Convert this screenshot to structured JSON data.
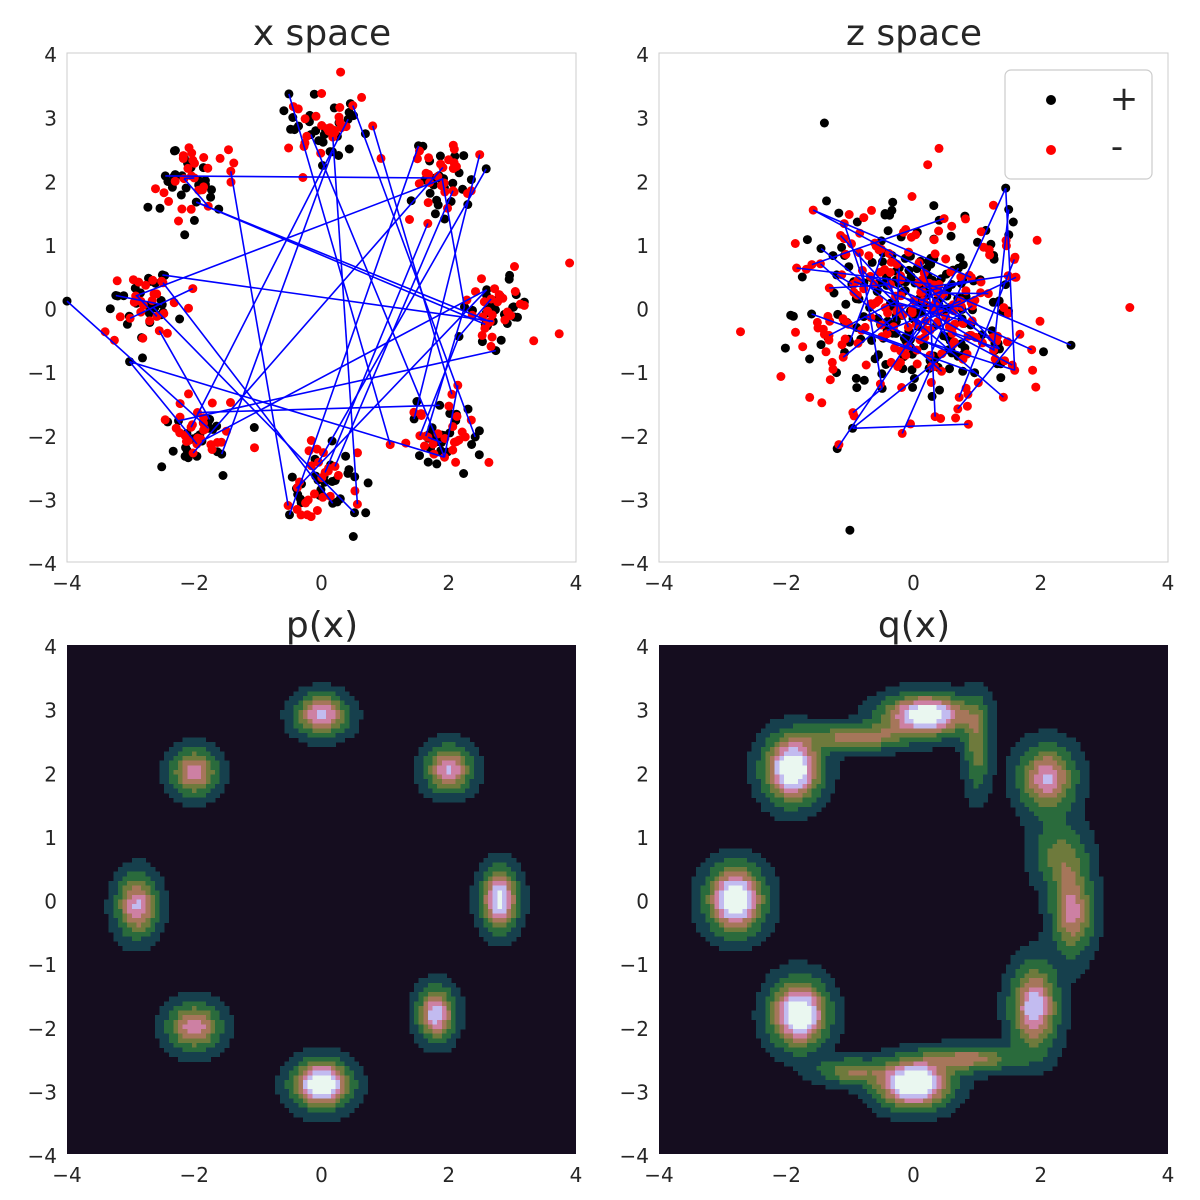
{
  "colors": {
    "positive": "#000000",
    "negative": "#ff0000",
    "link": "#0000ff",
    "spine": "#cccccc",
    "text": "#262626",
    "density_levels": [
      "#150d1f",
      "#16404d",
      "#2a6b3c",
      "#6e7a3c",
      "#a6765a",
      "#cd80a3",
      "#c2bbf0",
      "#eaf7f0"
    ]
  },
  "chart_data": [
    {
      "id": "x-space",
      "type": "scatter",
      "title": "x space",
      "xlim": [
        -4,
        4
      ],
      "ylim": [
        -4,
        4
      ],
      "xticks": [
        "−4",
        "−2",
        "0",
        "2",
        "4"
      ],
      "yticks": [
        "−4",
        "−3",
        "−2",
        "−1",
        "0",
        "1",
        "2",
        "3",
        "4"
      ],
      "grid": false,
      "mixture": {
        "modes": 8,
        "radius": 2.8,
        "spread": 0.3
      },
      "series": [
        {
          "label": "+",
          "points_per_mode": 28
        },
        {
          "label": "-",
          "points_per_mode": 28
        }
      ],
      "links": 40,
      "outliers": [
        [
          -4.0,
          0.1
        ],
        [
          3.9,
          0.7
        ],
        [
          0.5,
          -3.6
        ],
        [
          0.3,
          3.7
        ]
      ]
    },
    {
      "id": "z-space",
      "type": "scatter",
      "title": "z space",
      "xlim": [
        -4,
        4
      ],
      "ylim": [
        -4,
        4
      ],
      "xticks": [
        "−4",
        "−2",
        "0",
        "2",
        "4"
      ],
      "yticks": [
        "−4",
        "−3",
        "−2",
        "−1",
        "0",
        "1",
        "2",
        "3",
        "4"
      ],
      "grid": false,
      "distribution": {
        "mean": [
          0,
          0
        ],
        "std": 0.9
      },
      "series": [
        {
          "label": "+",
          "points": 220
        },
        {
          "label": "-",
          "points": 220
        }
      ],
      "links": 55,
      "outliers": [
        [
          -1.0,
          -3.5
        ],
        [
          3.4,
          0.0
        ],
        [
          -1.4,
          2.9
        ],
        [
          0.4,
          2.5
        ]
      ],
      "legend": {
        "position": "top-right",
        "entries": [
          {
            "label": "+",
            "color": "#000000"
          },
          {
            "label": "-",
            "color": "#ff0000"
          }
        ]
      }
    },
    {
      "id": "p-x",
      "type": "heatmap",
      "title": "p(x)",
      "xlim": [
        -4,
        4
      ],
      "ylim": [
        -4,
        4
      ],
      "xticks": [
        "−4",
        "−2",
        "0",
        "2",
        "4"
      ],
      "yticks": [
        "−4",
        "−3",
        "−2",
        "−1",
        "0",
        "1",
        "2",
        "3",
        "4"
      ],
      "grid": false,
      "modes": [
        {
          "x": 0.0,
          "y": 2.9,
          "sx": 0.28,
          "sy": 0.22,
          "w": 1.0
        },
        {
          "x": 2.0,
          "y": 2.05,
          "sx": 0.25,
          "sy": 0.25,
          "w": 0.95
        },
        {
          "x": 2.8,
          "y": 0.0,
          "sx": 0.2,
          "sy": 0.33,
          "w": 1.15
        },
        {
          "x": 1.8,
          "y": -1.8,
          "sx": 0.2,
          "sy": 0.28,
          "w": 1.05
        },
        {
          "x": 0.0,
          "y": -2.9,
          "sx": 0.3,
          "sy": 0.25,
          "w": 1.35
        },
        {
          "x": -2.0,
          "y": -2.0,
          "sx": 0.28,
          "sy": 0.25,
          "w": 0.9
        },
        {
          "x": -2.9,
          "y": -0.1,
          "sx": 0.22,
          "sy": 0.33,
          "w": 0.95
        },
        {
          "x": -2.0,
          "y": 2.0,
          "sx": 0.25,
          "sy": 0.25,
          "w": 0.9
        }
      ]
    },
    {
      "id": "q-x",
      "type": "heatmap",
      "title": "q(x)",
      "xlim": [
        -4,
        4
      ],
      "ylim": [
        -4,
        4
      ],
      "xticks": [
        "−4",
        "−2",
        "0",
        "2",
        "4"
      ],
      "yticks": [
        "−4",
        "−3",
        "−2",
        "−1",
        "0",
        "1",
        "2",
        "3",
        "4"
      ],
      "grid": false,
      "modes": [
        {
          "x": 0.2,
          "y": 2.9,
          "sx": 0.45,
          "sy": 0.22,
          "w": 1.3
        },
        {
          "x": -1.9,
          "y": 2.05,
          "sx": 0.3,
          "sy": 0.35,
          "w": 1.35
        },
        {
          "x": 2.1,
          "y": 1.9,
          "sx": 0.3,
          "sy": 0.35,
          "w": 0.95
        },
        {
          "x": -2.8,
          "y": 0.0,
          "sx": 0.3,
          "sy": 0.35,
          "w": 1.35
        },
        {
          "x": 2.5,
          "y": -0.2,
          "sx": 0.22,
          "sy": 0.45,
          "w": 0.85
        },
        {
          "x": 1.9,
          "y": -1.7,
          "sx": 0.25,
          "sy": 0.45,
          "w": 1.05
        },
        {
          "x": -1.8,
          "y": -1.8,
          "sx": 0.3,
          "sy": 0.35,
          "w": 1.35
        },
        {
          "x": 0.0,
          "y": -2.9,
          "sx": 0.38,
          "sy": 0.25,
          "w": 1.45
        },
        {
          "x": -0.9,
          "y": 2.55,
          "sx": 0.5,
          "sy": 0.14,
          "w": 0.75
        },
        {
          "x": 1.0,
          "y": 2.4,
          "sx": 0.14,
          "sy": 0.5,
          "w": 0.55
        },
        {
          "x": 0.9,
          "y": -2.5,
          "sx": 0.5,
          "sy": 0.14,
          "w": 0.7
        },
        {
          "x": -1.0,
          "y": -2.7,
          "sx": 0.35,
          "sy": 0.14,
          "w": 0.6
        },
        {
          "x": 2.3,
          "y": 0.7,
          "sx": 0.3,
          "sy": 0.35,
          "w": 0.5
        }
      ]
    }
  ]
}
